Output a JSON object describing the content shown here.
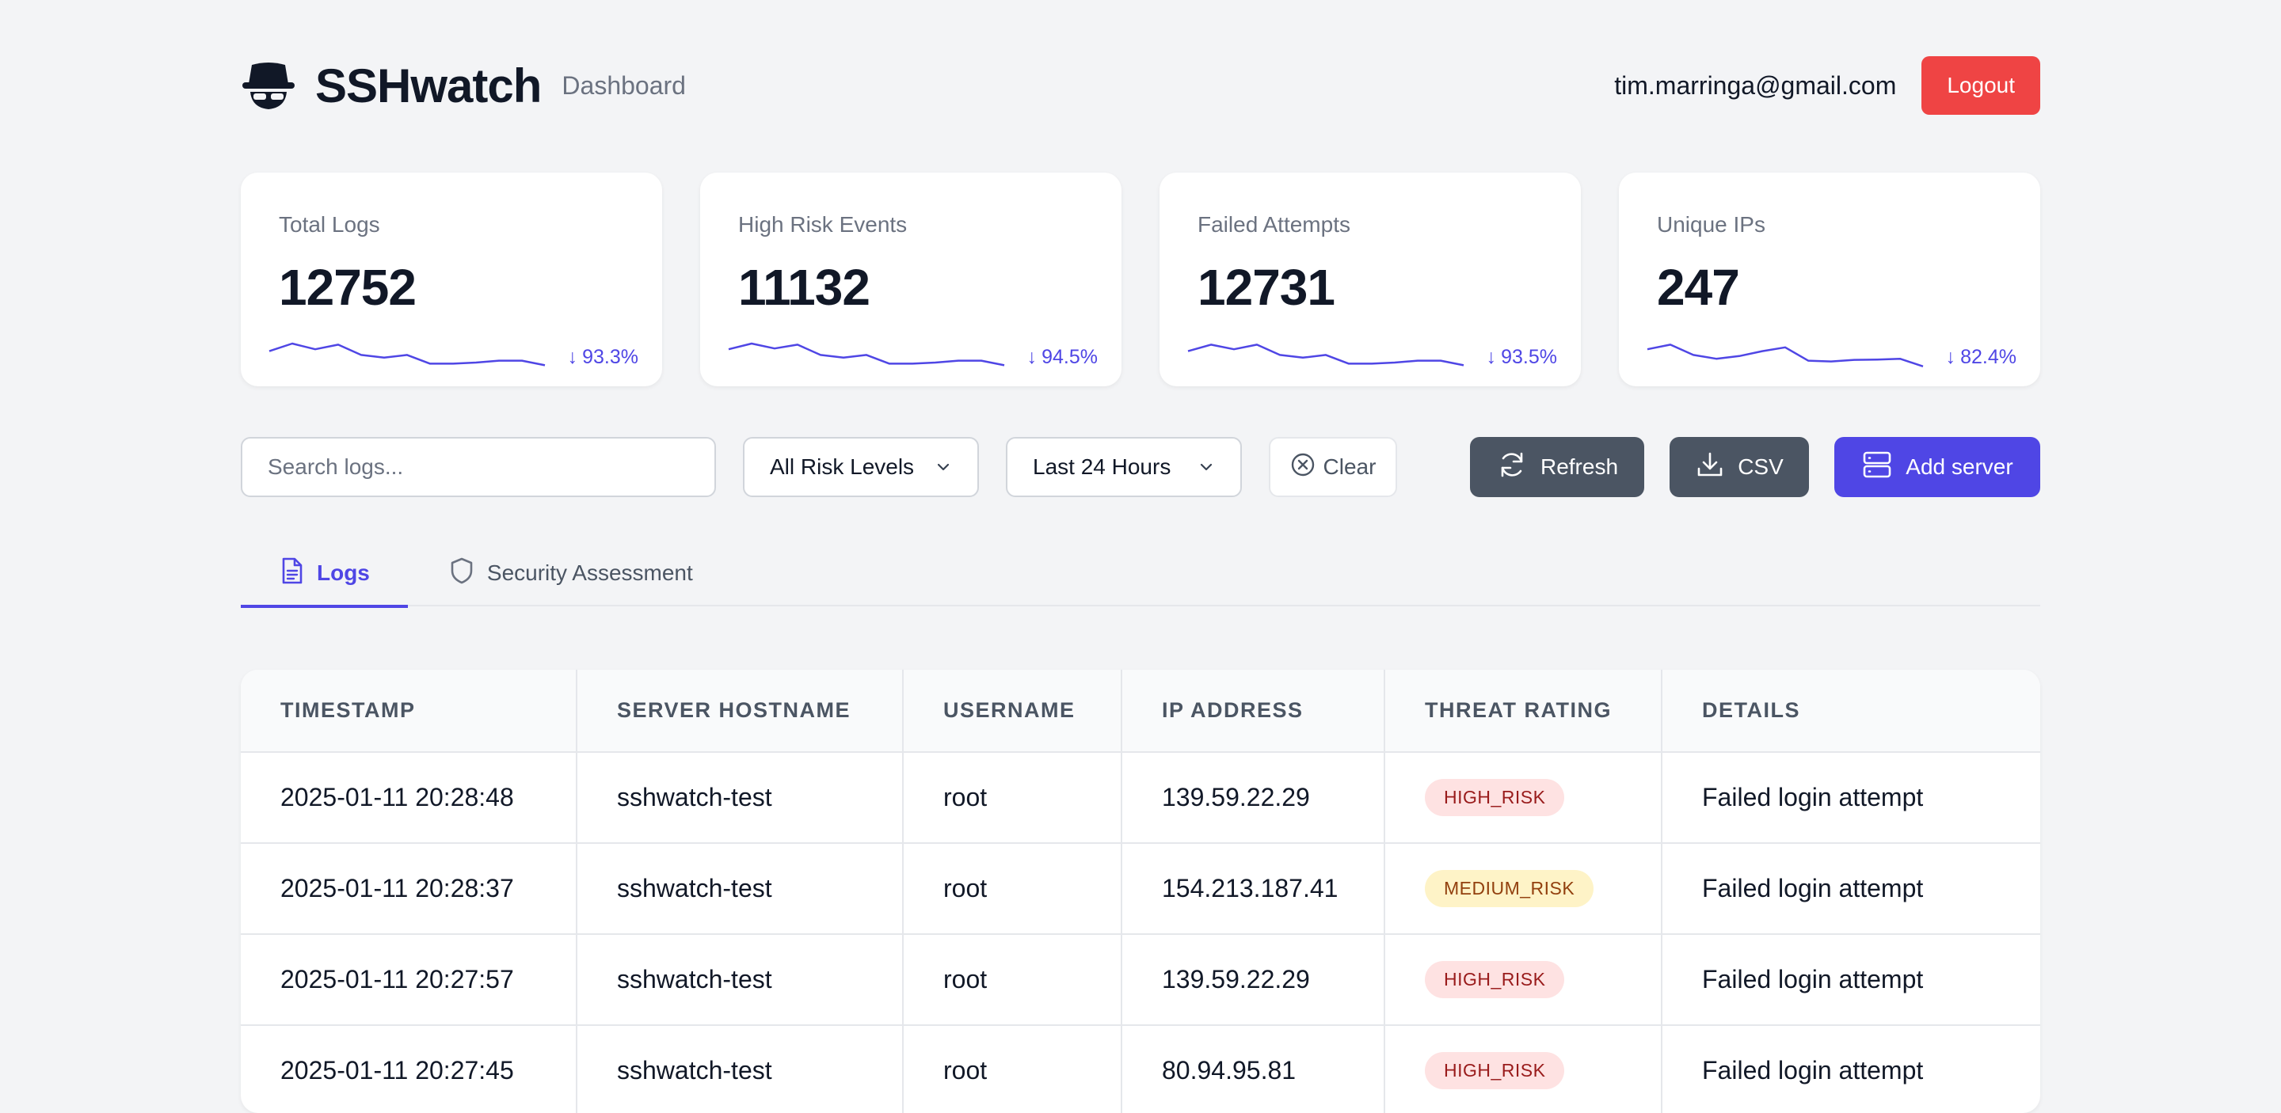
{
  "header": {
    "title": "SSHwatch",
    "subtitle": "Dashboard",
    "user_email": "tim.marringa@gmail.com",
    "logout_label": "Logout",
    "logo_icon": "spy-hat-icon"
  },
  "stats": [
    {
      "label": "Total Logs",
      "value": "12752",
      "change": "93.3%",
      "trend": [
        0.55,
        0.75,
        0.6,
        0.72,
        0.45,
        0.38,
        0.45,
        0.22,
        0.22,
        0.25,
        0.3,
        0.3,
        0.18
      ]
    },
    {
      "label": "High Risk Events",
      "value": "11132",
      "change": "94.5%",
      "trend": [
        0.6,
        0.75,
        0.62,
        0.72,
        0.45,
        0.38,
        0.45,
        0.22,
        0.22,
        0.25,
        0.3,
        0.3,
        0.18
      ]
    },
    {
      "label": "Failed Attempts",
      "value": "12731",
      "change": "93.5%",
      "trend": [
        0.55,
        0.72,
        0.6,
        0.72,
        0.45,
        0.38,
        0.45,
        0.22,
        0.22,
        0.25,
        0.3,
        0.3,
        0.18
      ]
    },
    {
      "label": "Unique IPs",
      "value": "247",
      "change": "82.4%",
      "trend": [
        0.6,
        0.72,
        0.45,
        0.35,
        0.42,
        0.55,
        0.65,
        0.3,
        0.28,
        0.32,
        0.33,
        0.35,
        0.15
      ]
    }
  ],
  "change_color": "#4f46e5",
  "toolbar": {
    "search_placeholder": "Search logs...",
    "risk_select": "All Risk Levels",
    "time_select": "Last 24 Hours",
    "clear_label": "Clear",
    "refresh_label": "Refresh",
    "csv_label": "CSV",
    "add_server_label": "Add server"
  },
  "tabs": [
    {
      "label": "Logs",
      "icon": "document-icon",
      "active": true
    },
    {
      "label": "Security Assessment",
      "icon": "shield-icon",
      "active": false
    }
  ],
  "table": {
    "columns": [
      "TIMESTAMP",
      "SERVER HOSTNAME",
      "USERNAME",
      "IP ADDRESS",
      "THREAT RATING",
      "DETAILS"
    ],
    "rows": [
      {
        "timestamp": "2025-01-11 20:28:48",
        "hostname": "sshwatch-test",
        "username": "root",
        "ip": "139.59.22.29",
        "threat": "HIGH_RISK",
        "details": "Failed login attempt"
      },
      {
        "timestamp": "2025-01-11 20:28:37",
        "hostname": "sshwatch-test",
        "username": "root",
        "ip": "154.213.187.41",
        "threat": "MEDIUM_RISK",
        "details": "Failed login attempt"
      },
      {
        "timestamp": "2025-01-11 20:27:57",
        "hostname": "sshwatch-test",
        "username": "root",
        "ip": "139.59.22.29",
        "threat": "HIGH_RISK",
        "details": "Failed login attempt"
      },
      {
        "timestamp": "2025-01-11 20:27:45",
        "hostname": "sshwatch-test",
        "username": "root",
        "ip": "80.94.95.81",
        "threat": "HIGH_RISK",
        "details": "Failed login attempt"
      }
    ]
  }
}
